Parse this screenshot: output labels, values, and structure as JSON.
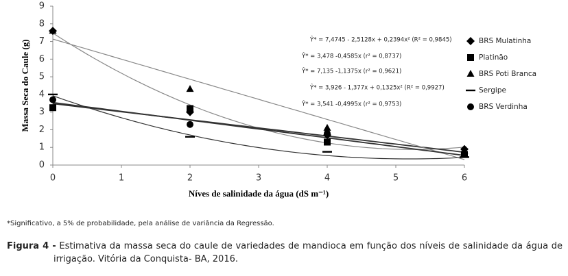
{
  "chart_data": {
    "type": "scatter",
    "x_label": "Níves de salinidade da água  (dS m⁻¹)",
    "y_label": "Massa Seca do Caule (g)",
    "x": [
      0,
      2,
      4,
      6
    ],
    "xlim": [
      0,
      6
    ],
    "xticks": [
      0,
      1,
      2,
      3,
      4,
      5,
      6
    ],
    "ylim": [
      0,
      9
    ],
    "yticks": [
      0,
      1,
      2,
      3,
      4,
      5,
      6,
      7,
      8,
      9
    ],
    "series": [
      {
        "name": "BRS Mulatinha",
        "color": "#000000",
        "marker": "diamond",
        "values": [
          7.6,
          3.0,
          1.7,
          0.9
        ],
        "trend": {
          "label": "Ŷ* = 7,4745 - 2,5128x + 0,2394x² (R² = 0,9845)",
          "coefficients": [
            7.4745,
            -2.5128,
            0.2394
          ]
        }
      },
      {
        "name": "Platinão",
        "color": "#000000",
        "marker": "square",
        "values": [
          3.25,
          3.2,
          1.3,
          0.6
        ],
        "trend": {
          "label": "Ŷ* = 3,478 -0,4585x   (r² = 0,8737)",
          "coefficients": [
            3.478,
            -0.4585
          ]
        }
      },
      {
        "name": "BRS Poti Branca",
        "color": "#000000",
        "marker": "triangle",
        "values": [
          7.6,
          4.3,
          2.1,
          0.8
        ],
        "trend": {
          "label": "Ŷ* = 7,135 -1,1375x   (r² = 0,9621)",
          "coefficients": [
            7.135,
            -1.1375
          ]
        }
      },
      {
        "name": "Sergipe",
        "color": "#000000",
        "marker": "dash",
        "values": [
          4.0,
          1.6,
          0.75,
          0.45
        ],
        "trend": {
          "label": "Ŷ* = 3,926 - 1,377x + 0,1325x² (R² = 0,9927)",
          "coefficients": [
            3.926,
            -1.377,
            0.1325
          ]
        }
      },
      {
        "name": "BRS Verdinha",
        "color": "#000000",
        "marker": "circle",
        "values": [
          3.7,
          2.3,
          1.8,
          0.6
        ],
        "trend": {
          "label": "Ŷ* = 3,541 -0,4995x (r² = 0,9753)",
          "coefficients": [
            3.541,
            -0.4995
          ]
        }
      }
    ]
  },
  "footnote": "*Significativo, a 5% de probabilidade, pela análise de variância da Regressão.",
  "caption_label": "Figura 4 -",
  "caption": "Estimativa da massa seca do caule de variedades de mandioca em função dos níveis de salinidade da água de irrigação. Vitória da Conquista- BA, 2016."
}
